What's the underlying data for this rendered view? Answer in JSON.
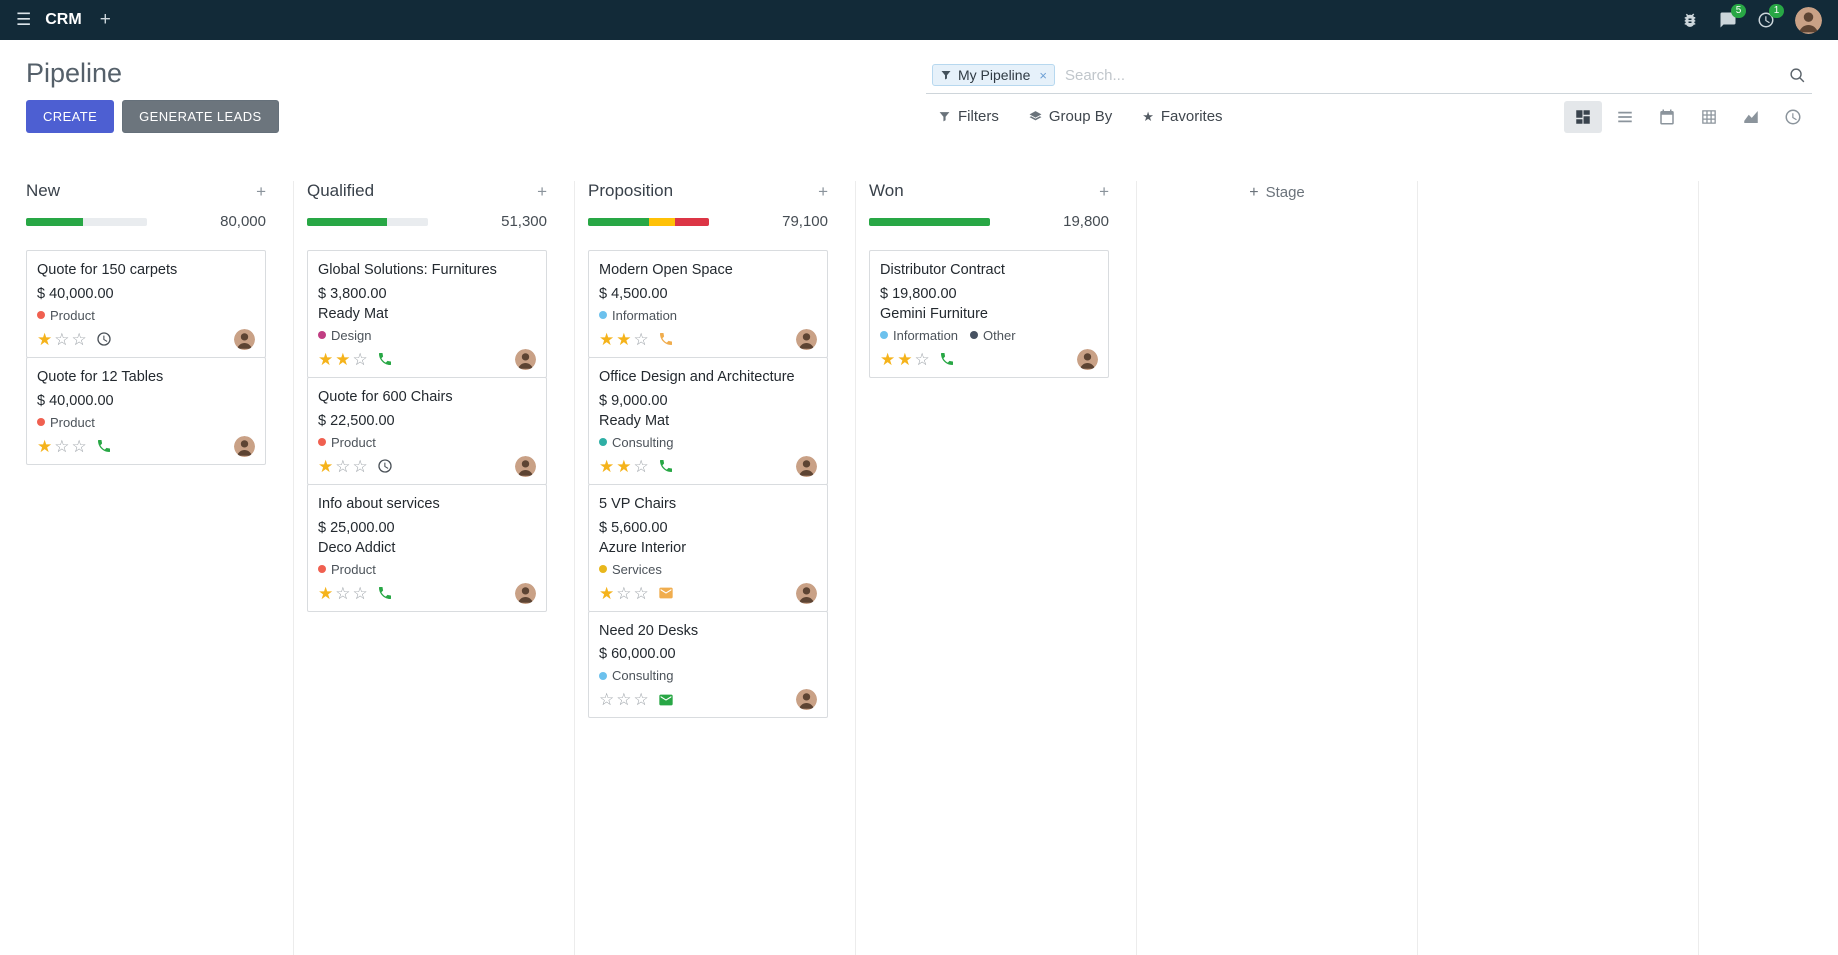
{
  "colors": {
    "navbar_bg": "#122a38",
    "primary": "#4d5fd2",
    "secondary": "#6c757d",
    "success": "#28a745",
    "warning": "#f0ad4e",
    "danger": "#dc3545",
    "star_gold": "#f5b31b"
  },
  "navbar": {
    "app_name": "CRM",
    "messages_badge": "5",
    "activities_badge": "1"
  },
  "control_panel": {
    "title": "Pipeline",
    "create_label": "CREATE",
    "generate_leads_label": "GENERATE LEADS",
    "filters_label": "Filters",
    "group_by_label": "Group By",
    "favorites_label": "Favorites",
    "search": {
      "facet_label": "My Pipeline",
      "placeholder": "Search..."
    }
  },
  "board": {
    "add_stage_label": "Stage",
    "columns": [
      {
        "name": "New",
        "total": "80,000",
        "progress": [
          {
            "color": "#28a745",
            "pct": 47
          }
        ],
        "cards": [
          {
            "title": "Quote for 150 carpets",
            "amount": "$ 40,000.00",
            "tags": [
              {
                "label": "Product",
                "color": "#f06050"
              }
            ],
            "stars": 1,
            "activity_icon": "clock",
            "activity_color": "#495057"
          },
          {
            "title": "Quote for 12 Tables",
            "amount": "$ 40,000.00",
            "tags": [
              {
                "label": "Product",
                "color": "#f06050"
              }
            ],
            "stars": 1,
            "activity_icon": "phone",
            "activity_color": "#28a745"
          }
        ]
      },
      {
        "name": "Qualified",
        "total": "51,300",
        "progress": [
          {
            "color": "#28a745",
            "pct": 66
          }
        ],
        "cards": [
          {
            "title": "Global Solutions: Furnitures",
            "amount": "$ 3,800.00",
            "partner": "Ready Mat",
            "tags": [
              {
                "label": "Design",
                "color": "#c13e83"
              }
            ],
            "stars": 2,
            "activity_icon": "phone",
            "activity_color": "#28a745"
          },
          {
            "title": "Quote for 600 Chairs",
            "amount": "$ 22,500.00",
            "tags": [
              {
                "label": "Product",
                "color": "#f06050"
              }
            ],
            "stars": 1,
            "activity_icon": "clock",
            "activity_color": "#495057"
          },
          {
            "title": "Info about services",
            "amount": "$ 25,000.00",
            "partner": "Deco Addict",
            "tags": [
              {
                "label": "Product",
                "color": "#f06050"
              }
            ],
            "stars": 1,
            "activity_icon": "phone",
            "activity_color": "#28a745"
          }
        ]
      },
      {
        "name": "Proposition",
        "total": "79,100",
        "progress": [
          {
            "color": "#28a745",
            "pct": 50
          },
          {
            "color": "#ffc107",
            "pct": 22
          },
          {
            "color": "#dc3545",
            "pct": 28
          }
        ],
        "cards": [
          {
            "title": "Modern Open Space",
            "amount": "$ 4,500.00",
            "tags": [
              {
                "label": "Information",
                "color": "#6cc1ed"
              }
            ],
            "stars": 2,
            "activity_icon": "phone",
            "activity_color": "#f0ad4e"
          },
          {
            "title": "Office Design and Architecture",
            "amount": "$ 9,000.00",
            "partner": "Ready Mat",
            "tags": [
              {
                "label": "Consulting",
                "color": "#2eafa5"
              }
            ],
            "stars": 2,
            "activity_icon": "phone",
            "activity_color": "#28a745"
          },
          {
            "title": "5 VP Chairs",
            "amount": "$ 5,600.00",
            "partner": "Azure Interior",
            "tags": [
              {
                "label": "Services",
                "color": "#e8b71c"
              }
            ],
            "stars": 1,
            "activity_icon": "envelope",
            "activity_color": "#f0ad4e"
          },
          {
            "title": "Need 20 Desks",
            "amount": "$ 60,000.00",
            "tags": [
              {
                "label": "Consulting",
                "color": "#6cc1ed"
              }
            ],
            "stars": 0,
            "activity_icon": "envelope",
            "activity_color": "#28a745"
          }
        ]
      },
      {
        "name": "Won",
        "total": "19,800",
        "progress": [
          {
            "color": "#28a745",
            "pct": 100
          }
        ],
        "cards": [
          {
            "title": "Distributor Contract",
            "amount": "$ 19,800.00",
            "partner": "Gemini Furniture",
            "tags": [
              {
                "label": "Information",
                "color": "#6cc1ed"
              },
              {
                "label": "Other",
                "color": "#475262"
              }
            ],
            "stars": 2,
            "activity_icon": "phone",
            "activity_color": "#28a745"
          }
        ]
      }
    ]
  }
}
